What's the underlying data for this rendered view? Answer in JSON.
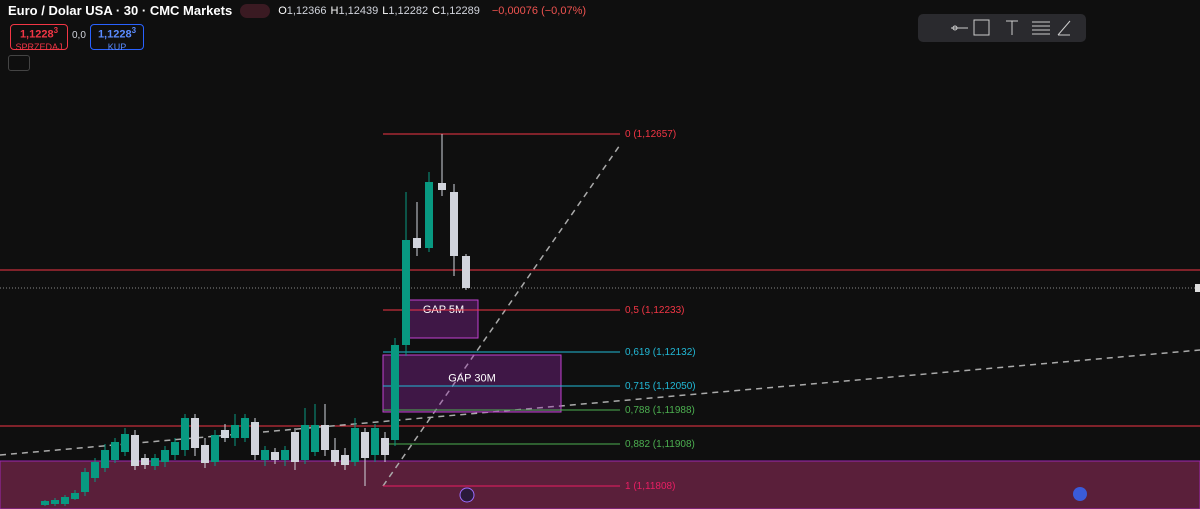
{
  "header": {
    "title": "Euro / Dolar USA · 30 · CMC Markets",
    "ohlc": [
      {
        "letter": "O",
        "value": "1,12366"
      },
      {
        "letter": "H",
        "value": "1,12439"
      },
      {
        "letter": "L",
        "value": "1,12282"
      },
      {
        "letter": "C",
        "value": "1,12289"
      }
    ],
    "change": "−0,00076 (−0,07%)"
  },
  "trade": {
    "sell": {
      "price": "1,1228",
      "digit": "3",
      "label": "SPRZEDAJ"
    },
    "spread": "0,0",
    "buy": {
      "price": "1,1228",
      "digit": "3",
      "label": "KUP"
    }
  },
  "fib_levels": [
    {
      "label": "0 (1,12657)",
      "color": "#f23645"
    },
    {
      "label": "0,5 (1,12233)",
      "color": "#f23645"
    },
    {
      "label": "0,619 (1,12132)",
      "color": "#22b8d6"
    },
    {
      "label": "0,715 (1,12050)",
      "color": "#22b8d6"
    },
    {
      "label": "0,788 (1,11988)",
      "color": "#4caf50"
    },
    {
      "label": "0,882 (1,11908)",
      "color": "#4caf50"
    },
    {
      "label": "1 (1,11808)",
      "color": "#e91e63"
    }
  ],
  "boxes": [
    {
      "label": "GAP 5M"
    },
    {
      "label": "GAP 30M"
    }
  ]
}
